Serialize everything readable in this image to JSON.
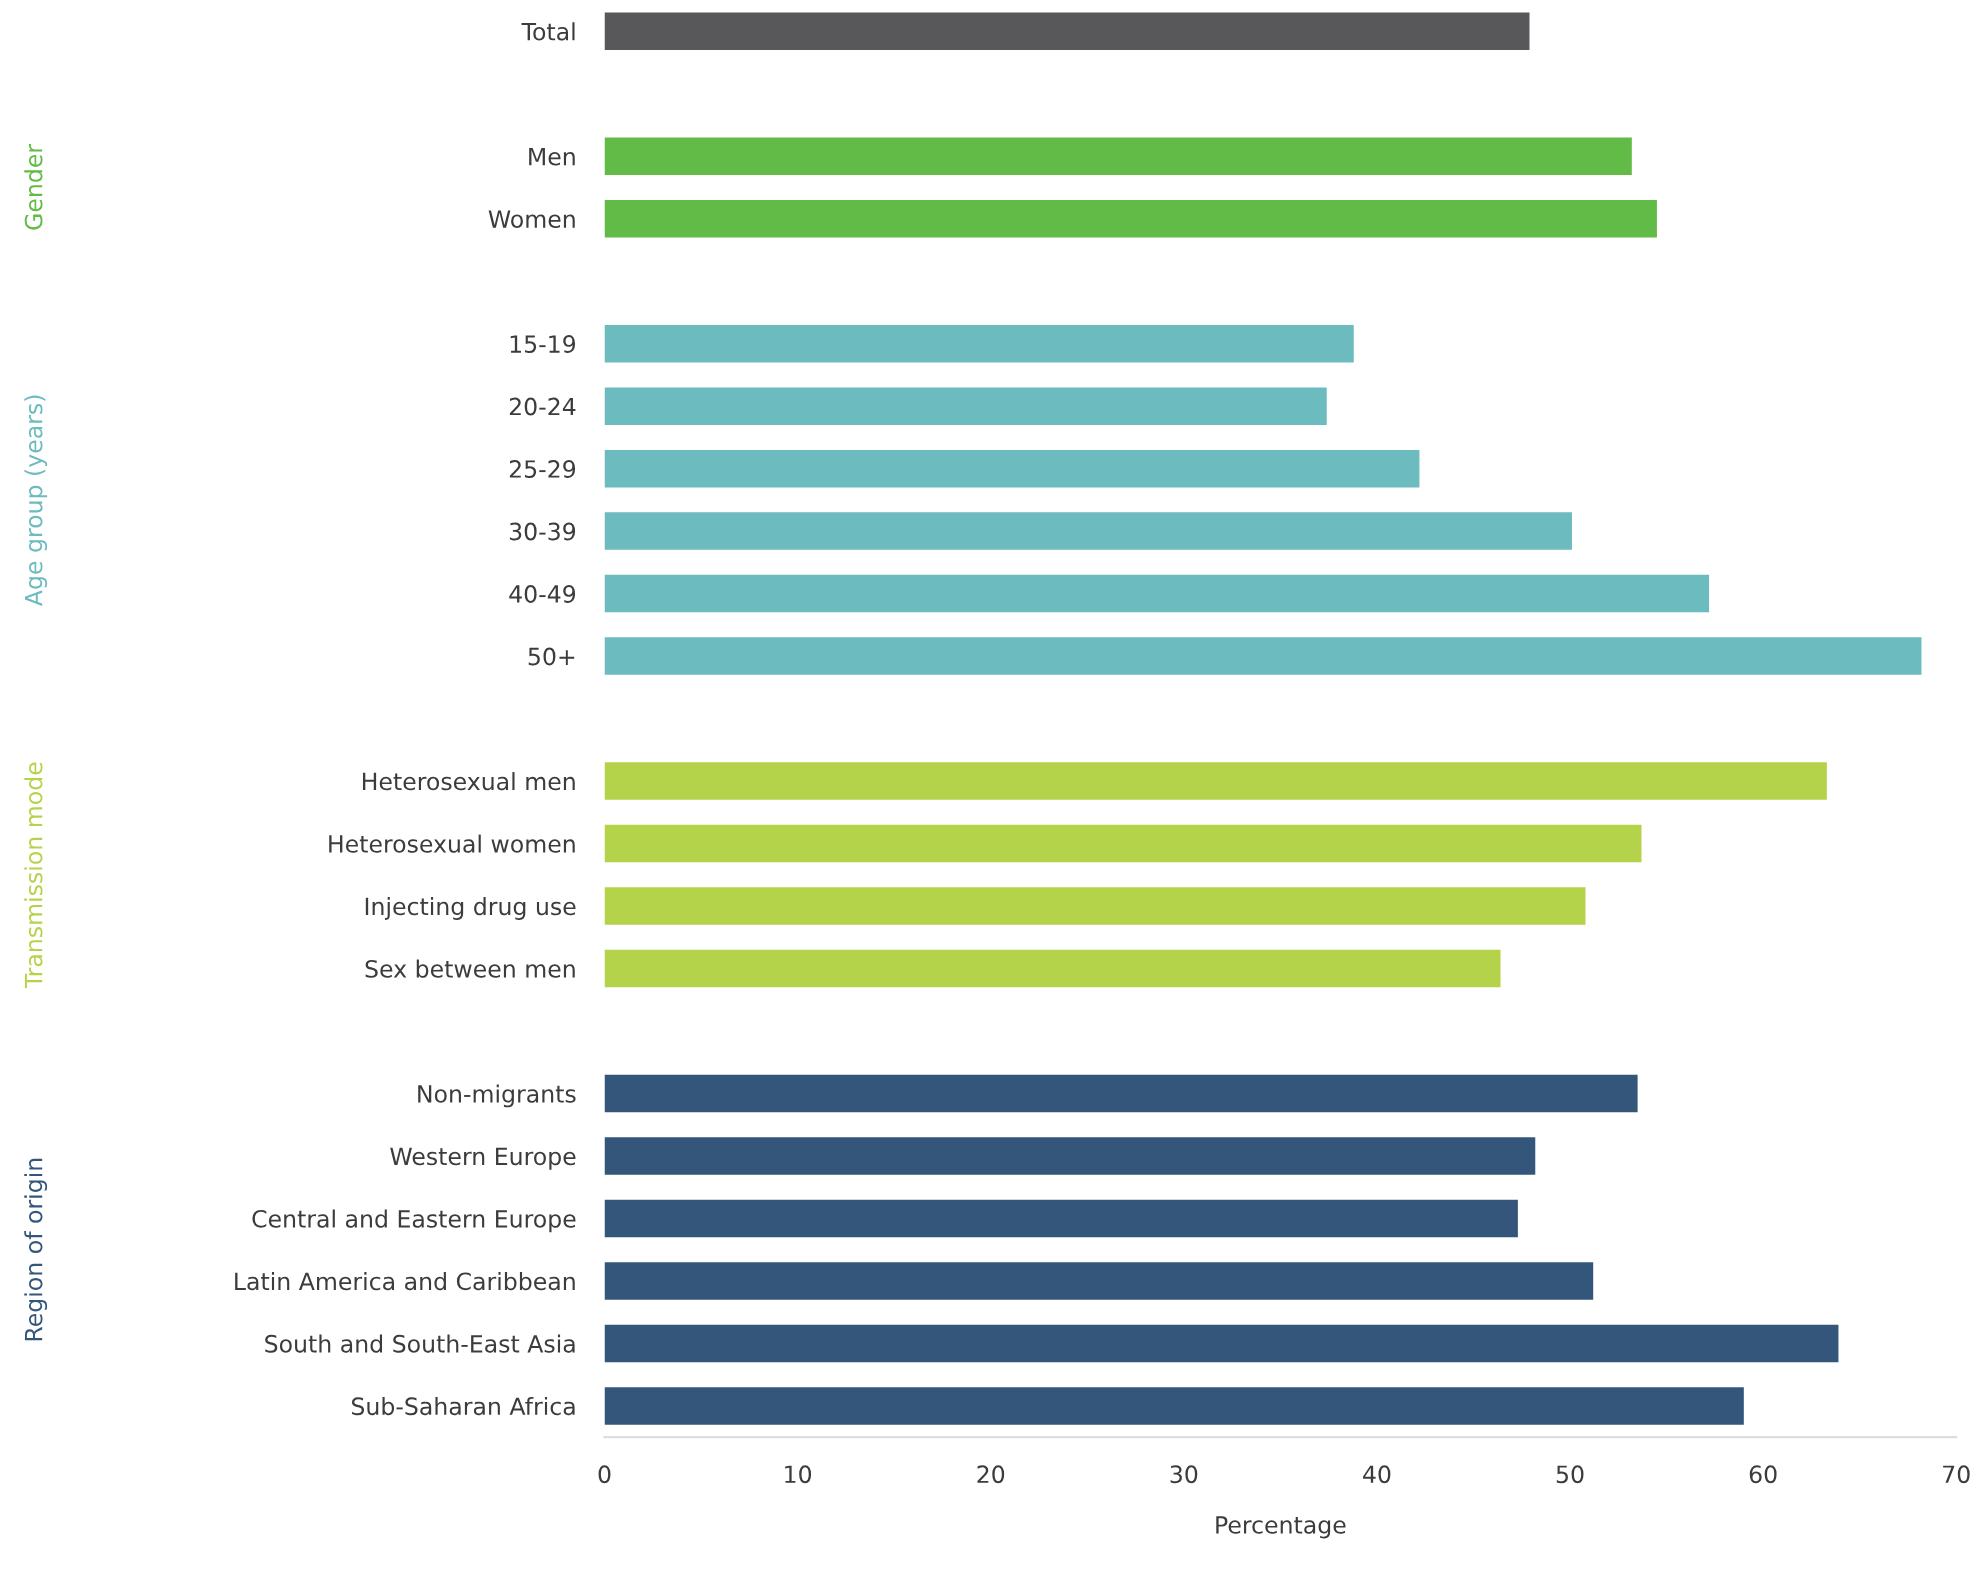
{
  "chart_data": {
    "type": "bar",
    "orientation": "horizontal",
    "xlabel": "Percentage",
    "categories": [
      "Total",
      null,
      "Men",
      "Women",
      null,
      "15-19",
      "20-24",
      "25-29",
      "30-39",
      "40-49",
      "50+",
      null,
      "Heterosexual men",
      "Heterosexual women",
      "Injecting drug use",
      "Sex between men",
      null,
      "Non-migrants",
      "Western Europe",
      "Central and Eastern Europe",
      "Latin America and Caribbean",
      "South and South-East Asia",
      "Sub-Saharan Africa"
    ],
    "series": [
      {
        "color": "#58585a",
        "values": [
          47.9,
          null,
          null,
          null,
          null,
          null,
          null,
          null,
          null,
          null,
          null,
          null,
          null,
          null,
          null,
          null,
          null,
          null,
          null,
          null,
          null,
          null,
          null
        ]
      },
      {
        "name": "Gender",
        "color": "#62bb46",
        "values": [
          null,
          null,
          53.2,
          54.5,
          null,
          null,
          null,
          null,
          null,
          null,
          null,
          null,
          null,
          null,
          null,
          null,
          null,
          null,
          null,
          null,
          null,
          null,
          null
        ]
      },
      {
        "name": "Age group (years)",
        "color": "#6bbbbf",
        "values": [
          null,
          null,
          null,
          null,
          null,
          38.8,
          37.4,
          42.2,
          50.1,
          57.2,
          68.2,
          null,
          null,
          null,
          null,
          null,
          null,
          null,
          null,
          null,
          null,
          null,
          null
        ]
      },
      {
        "name": "Transmission mode",
        "color": "#b5d34a",
        "values": [
          null,
          null,
          null,
          null,
          null,
          null,
          null,
          null,
          null,
          null,
          null,
          null,
          63.3,
          53.7,
          50.8,
          46.4,
          null,
          null,
          null,
          null,
          null,
          null,
          null
        ]
      },
      {
        "name": "Region of origin",
        "color": "#34567a",
        "values": [
          null,
          null,
          null,
          null,
          null,
          null,
          null,
          null,
          null,
          null,
          null,
          null,
          null,
          null,
          null,
          null,
          null,
          53.5,
          48.2,
          47.3,
          51.2,
          63.9,
          59.0
        ]
      }
    ],
    "xlim": [
      0,
      70
    ],
    "xticks": [
      0,
      10,
      20,
      30,
      40,
      50,
      60,
      70
    ],
    "grid": false,
    "legend": false
  }
}
